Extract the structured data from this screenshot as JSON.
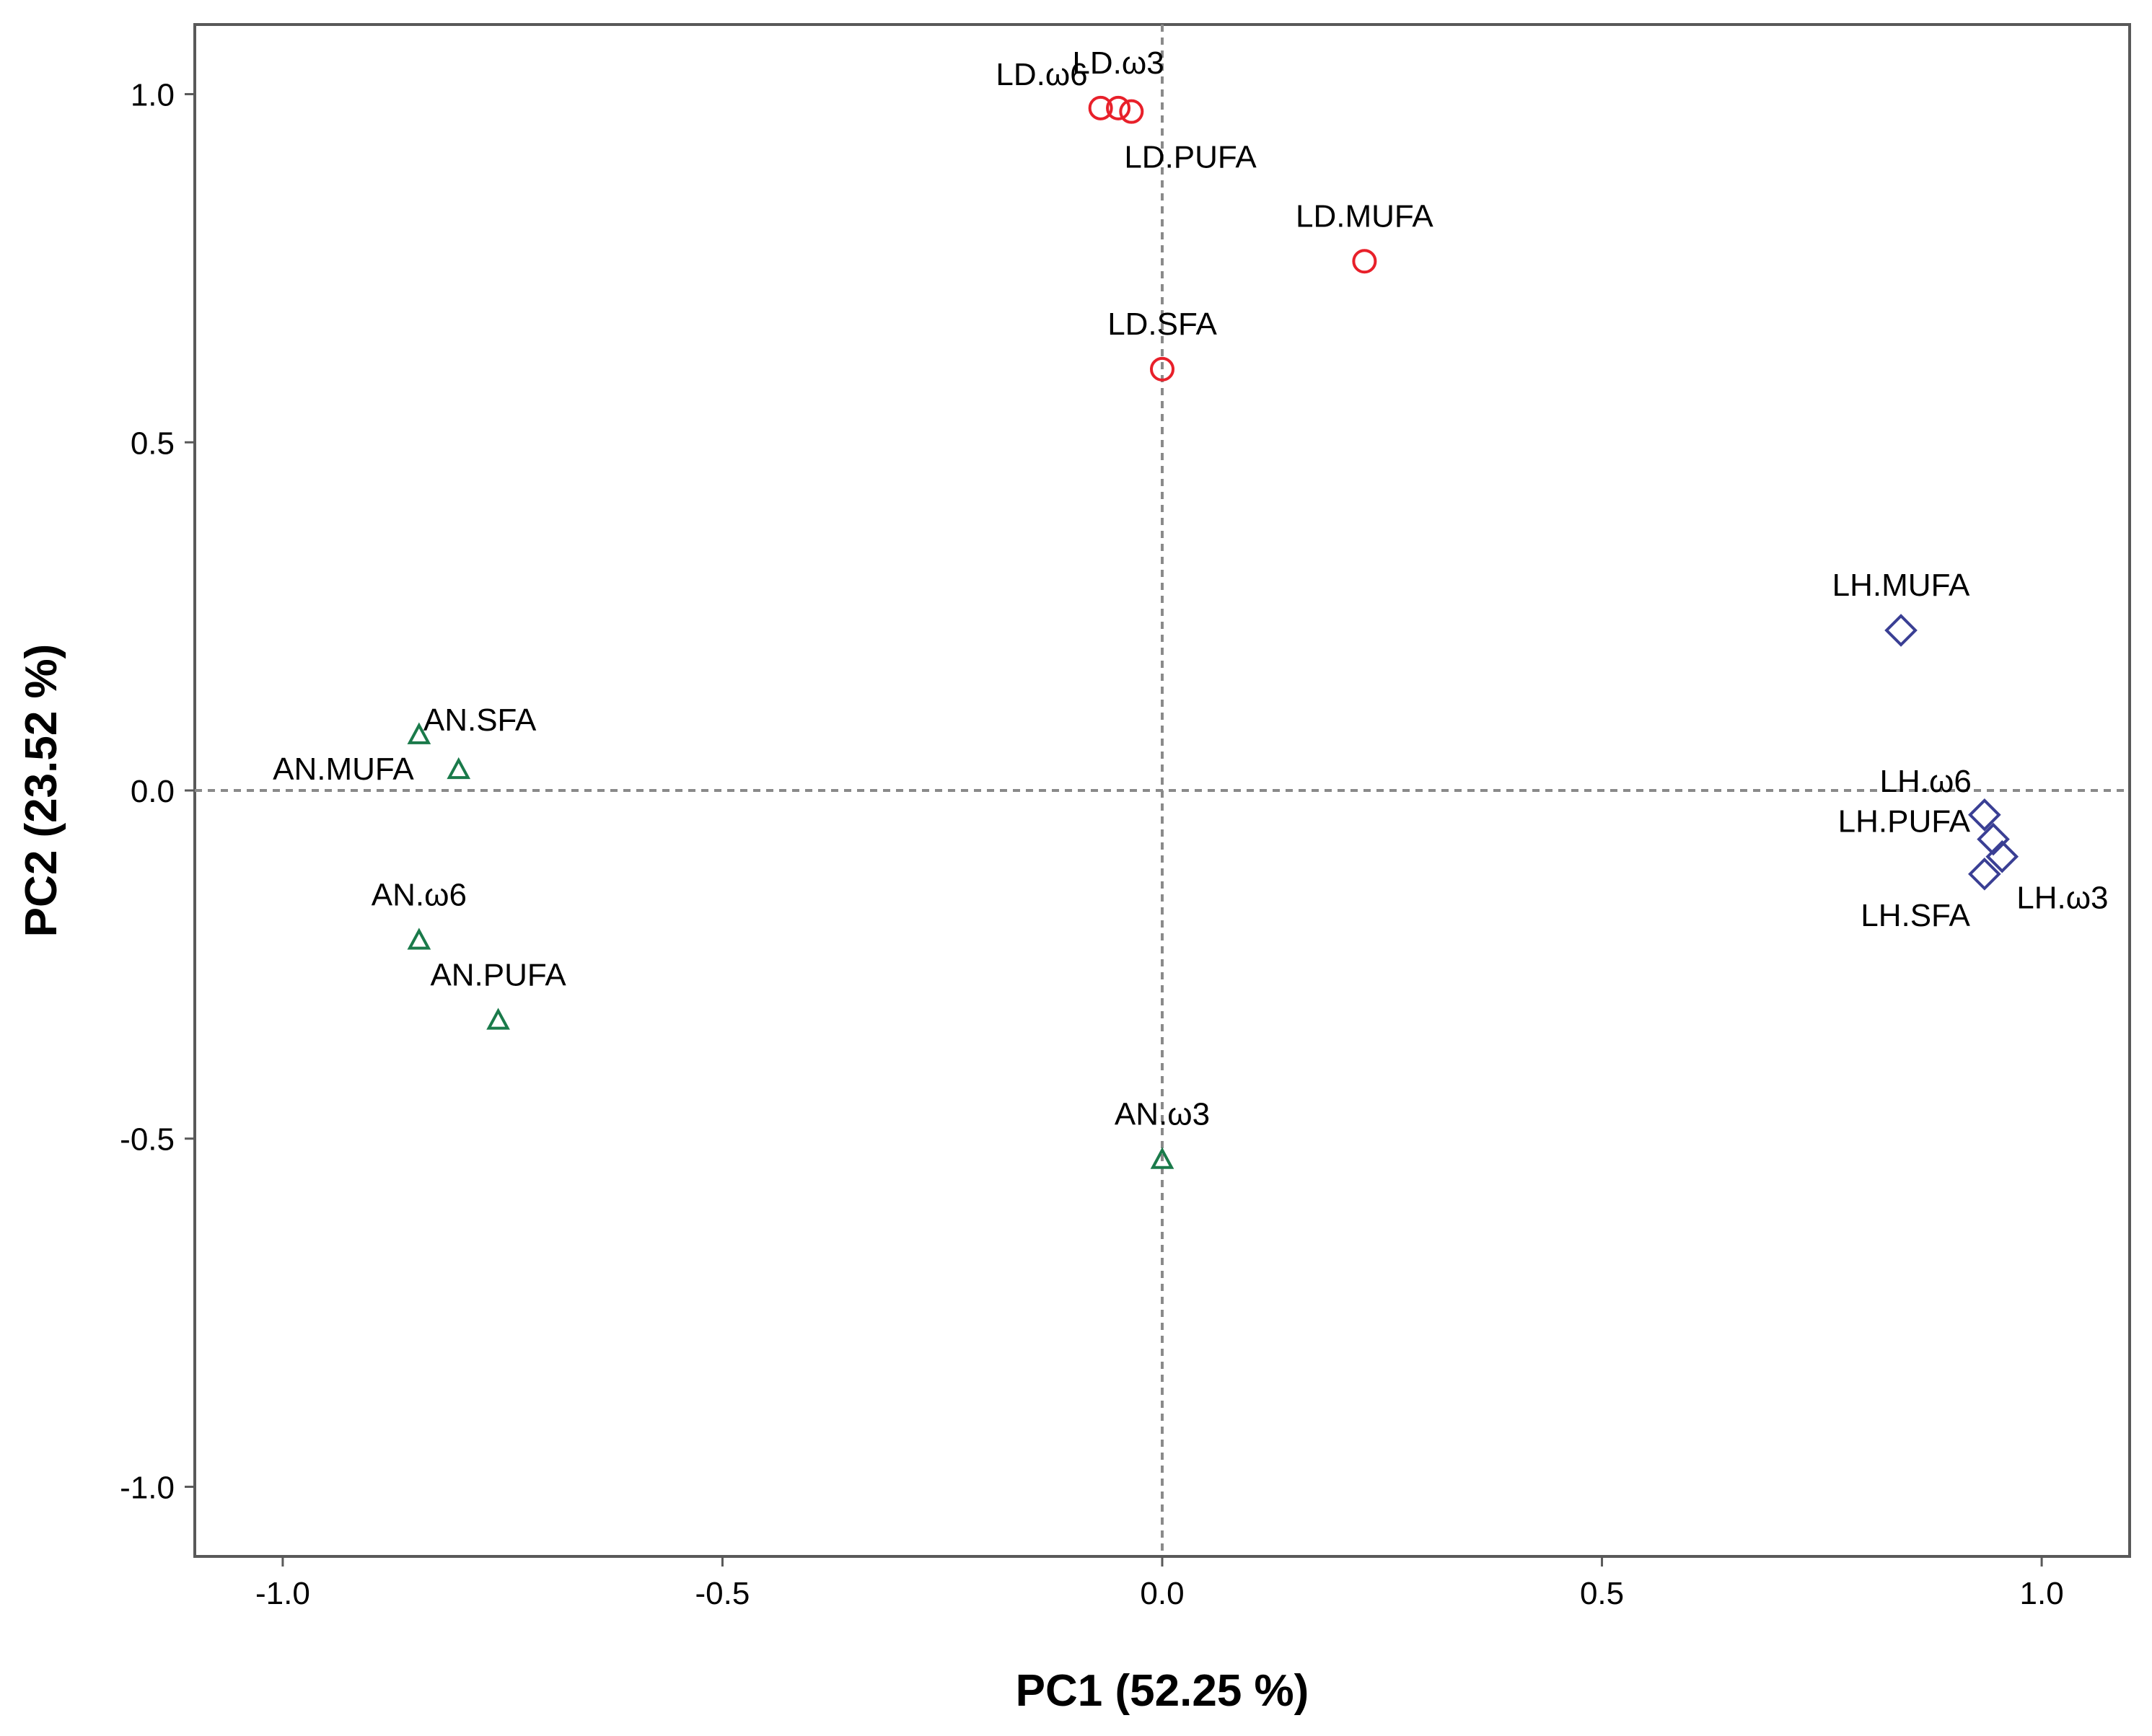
{
  "chart_data": {
    "type": "scatter",
    "title": "",
    "xlabel": "PC1 (52.25 %)",
    "ylabel": "PC2 (23.52 %)",
    "xlim": [
      -1.1,
      1.1
    ],
    "ylim": [
      -1.1,
      1.1
    ],
    "xticks": [
      -1.0,
      -0.5,
      0.0,
      0.5,
      1.0
    ],
    "yticks": [
      -1.0,
      -0.5,
      0.0,
      0.5,
      1.0
    ],
    "xtick_labels": [
      "-1.0",
      "-0.5",
      "0.0",
      "0.5",
      "1.0"
    ],
    "ytick_labels": [
      "-1.0",
      "-0.5",
      "0.0",
      "0.5",
      "1.0"
    ],
    "reference_lines": {
      "x": 0.0,
      "y": 0.0,
      "style": "dotted"
    },
    "grid": false,
    "series": [
      {
        "name": "LD",
        "marker": "circle",
        "color": "#e8202a",
        "points": [
          {
            "label": "LD.ω6",
            "x": -0.07,
            "y": 0.98,
            "label_pos": "above-left"
          },
          {
            "label": "LD.ω3",
            "x": -0.05,
            "y": 0.98,
            "label_pos": "above"
          },
          {
            "label": "LD.PUFA",
            "x": -0.035,
            "y": 0.975,
            "label_pos": "below"
          },
          {
            "label": "LD.MUFA",
            "x": 0.23,
            "y": 0.76,
            "label_pos": "above"
          },
          {
            "label": "LD.SFA",
            "x": 0.0,
            "y": 0.605,
            "label_pos": "above"
          }
        ]
      },
      {
        "name": "LH",
        "marker": "diamond",
        "color": "#3a3f94",
        "points": [
          {
            "label": "LH.MUFA",
            "x": 0.84,
            "y": 0.23,
            "label_pos": "above"
          },
          {
            "label": "LH.ω6",
            "x": 0.935,
            "y": -0.035,
            "label_pos": "above-left"
          },
          {
            "label": "LH.PUFA",
            "x": 0.945,
            "y": -0.07,
            "label_pos": "left"
          },
          {
            "label": "LH.ω3",
            "x": 0.955,
            "y": -0.095,
            "label_pos": "below-right"
          },
          {
            "label": "LH.SFA",
            "x": 0.935,
            "y": -0.12,
            "label_pos": "below-left"
          }
        ]
      },
      {
        "name": "AN",
        "marker": "triangle",
        "color": "#1a7a4a",
        "points": [
          {
            "label": "AN.SFA",
            "x": -0.845,
            "y": 0.08,
            "label_pos": "right"
          },
          {
            "label": "AN.MUFA",
            "x": -0.8,
            "y": 0.03,
            "label_pos": "far-left"
          },
          {
            "label": "AN.ω6",
            "x": -0.845,
            "y": -0.215,
            "label_pos": "above"
          },
          {
            "label": "AN.PUFA",
            "x": -0.755,
            "y": -0.33,
            "label_pos": "above"
          },
          {
            "label": "AN.ω3",
            "x": 0.0,
            "y": -0.53,
            "label_pos": "above"
          }
        ]
      }
    ]
  }
}
